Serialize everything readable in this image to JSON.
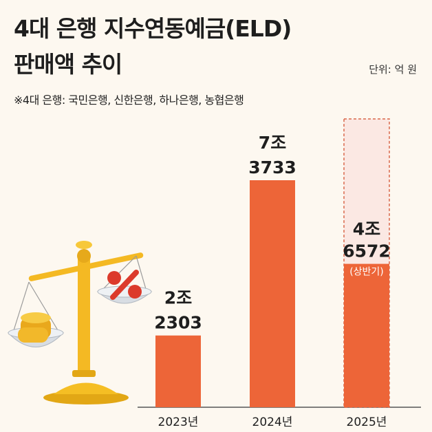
{
  "header": {
    "title_line1": "4대 은행 지수연동예금(ELD)",
    "title_line2": "판매액 추이",
    "unit": "단위: 억 원",
    "note": "※4대 은행: 국민은행, 신한은행, 하나은행, 농협은행"
  },
  "colors": {
    "bar": "#ed6538",
    "projection_fill": "#fbe8e3",
    "projection_border": "#d9674a",
    "background": "#fdf8f0",
    "axis": "#555555"
  },
  "chart_data": {
    "type": "bar",
    "categories": [
      "2023년",
      "2024년",
      "2025년"
    ],
    "values": [
      23303,
      73733,
      46572
    ],
    "value_labels": [
      {
        "line1": "2조",
        "line2": "2303"
      },
      {
        "line1": "7조",
        "line2": "3733"
      },
      {
        "line1": "4조",
        "line2": "6572",
        "line3": "(상반기)"
      }
    ],
    "projection": {
      "category": "2025년",
      "style": "dashed outline above bar"
    },
    "xlabel": "",
    "ylabel": "",
    "ylim": [
      0,
      100000
    ],
    "grid": false,
    "legend": "none"
  },
  "illustration": {
    "icon": "balance-scale-icon",
    "left_pan": "gold-coins",
    "right_pan": "percent-sign"
  }
}
